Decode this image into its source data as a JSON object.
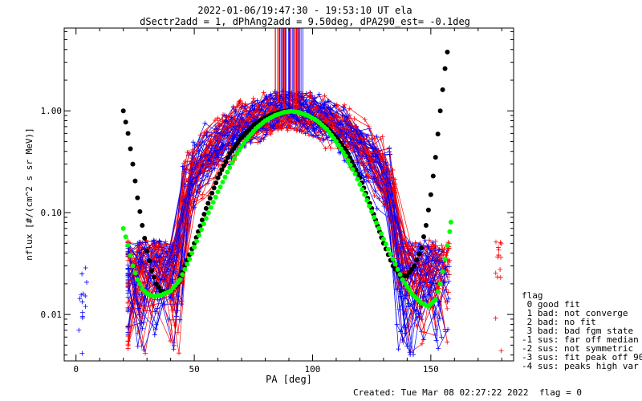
{
  "chart_data": {
    "type": "scatter",
    "title_line1": "2022-01-06/19:47:30 - 19:53:10 UT ela",
    "title_line2": "dSectr2add = 1, dPhAng2add = 9.50deg, dPA290_est=  -0.1deg",
    "xlabel": "PA [deg]",
    "ylabel": "nflux [#/(cm^2 s sr MeV)]",
    "xlim": [
      -5,
      185
    ],
    "ylim": [
      0.0035,
      6.5
    ],
    "yscale": "log",
    "x_ticks": [
      0,
      50,
      100,
      150
    ],
    "x_tick_labels": [
      "0",
      "50",
      "100",
      "150"
    ],
    "y_ticks": [
      0.01,
      0.1,
      1.0
    ],
    "y_tick_labels": [
      "0.01",
      "0.10",
      "1.00"
    ],
    "grid": false,
    "colors": {
      "trace_red": "#ff0000",
      "trace_blue": "#0000ff",
      "black_fit": "#000000",
      "green_fit": "#00ff00"
    },
    "series": [
      {
        "points": [
          [
            20,
            1.0
          ],
          [
            22,
            0.6
          ],
          [
            24,
            0.3
          ],
          [
            26,
            0.14
          ],
          [
            28,
            0.075
          ],
          [
            30,
            0.042
          ],
          [
            32,
            0.027
          ],
          [
            34,
            0.02
          ],
          [
            36,
            0.017
          ],
          [
            38,
            0.0165
          ],
          [
            40,
            0.017
          ],
          [
            43,
            0.02
          ],
          [
            46,
            0.03
          ],
          [
            50,
            0.05
          ],
          [
            55,
            0.11
          ],
          [
            60,
            0.22
          ],
          [
            65,
            0.38
          ],
          [
            70,
            0.55
          ],
          [
            75,
            0.72
          ],
          [
            80,
            0.86
          ],
          [
            85,
            0.96
          ],
          [
            90,
            1.0
          ],
          [
            95,
            0.96
          ],
          [
            100,
            0.86
          ],
          [
            105,
            0.72
          ],
          [
            110,
            0.55
          ],
          [
            115,
            0.38
          ],
          [
            120,
            0.22
          ],
          [
            125,
            0.11
          ],
          [
            130,
            0.05
          ],
          [
            134,
            0.03
          ],
          [
            137,
            0.024
          ],
          [
            140,
            0.024
          ],
          [
            143,
            0.03
          ],
          [
            146,
            0.045
          ],
          [
            148,
            0.075
          ],
          [
            150,
            0.15
          ],
          [
            152,
            0.35
          ],
          [
            154,
            1.0
          ],
          [
            156,
            2.6
          ],
          [
            158,
            5.5
          ]
        ]
      },
      {
        "points": [
          [
            20,
            0.07
          ],
          [
            22,
            0.048
          ],
          [
            24,
            0.03
          ],
          [
            26,
            0.022
          ],
          [
            28,
            0.018
          ],
          [
            30,
            0.016
          ],
          [
            33,
            0.015
          ],
          [
            36,
            0.0155
          ],
          [
            40,
            0.017
          ],
          [
            44,
            0.022
          ],
          [
            48,
            0.035
          ],
          [
            52,
            0.06
          ],
          [
            56,
            0.1
          ],
          [
            60,
            0.16
          ],
          [
            64,
            0.25
          ],
          [
            68,
            0.38
          ],
          [
            72,
            0.52
          ],
          [
            76,
            0.67
          ],
          [
            80,
            0.8
          ],
          [
            84,
            0.9
          ],
          [
            88,
            0.97
          ],
          [
            91,
            0.99
          ],
          [
            94,
            0.97
          ],
          [
            98,
            0.9
          ],
          [
            102,
            0.8
          ],
          [
            106,
            0.66
          ],
          [
            110,
            0.5
          ],
          [
            114,
            0.36
          ],
          [
            118,
            0.24
          ],
          [
            122,
            0.15
          ],
          [
            126,
            0.09
          ],
          [
            130,
            0.055
          ],
          [
            134,
            0.035
          ],
          [
            138,
            0.022
          ],
          [
            142,
            0.016
          ],
          [
            146,
            0.013
          ],
          [
            149,
            0.012
          ],
          [
            152,
            0.014
          ],
          [
            154,
            0.02
          ],
          [
            156,
            0.035
          ],
          [
            158,
            0.065
          ],
          [
            159,
            0.1
          ]
        ]
      }
    ],
    "legend": {
      "title": "flag",
      "entries": [
        " 0 good fit",
        " 1 bad: not converge",
        " 2 bad: no fit",
        " 3 bad: bad fgm state",
        "-1 sus: far off median",
        "-2 sus: not symmetric",
        "-3 sus: fit peak off 90",
        "-4 sus: peaks high var"
      ],
      "position": "right"
    },
    "footer_created": "Created: Tue Mar 08 02:27:22 2022",
    "footer_flag": "flag = 0"
  }
}
